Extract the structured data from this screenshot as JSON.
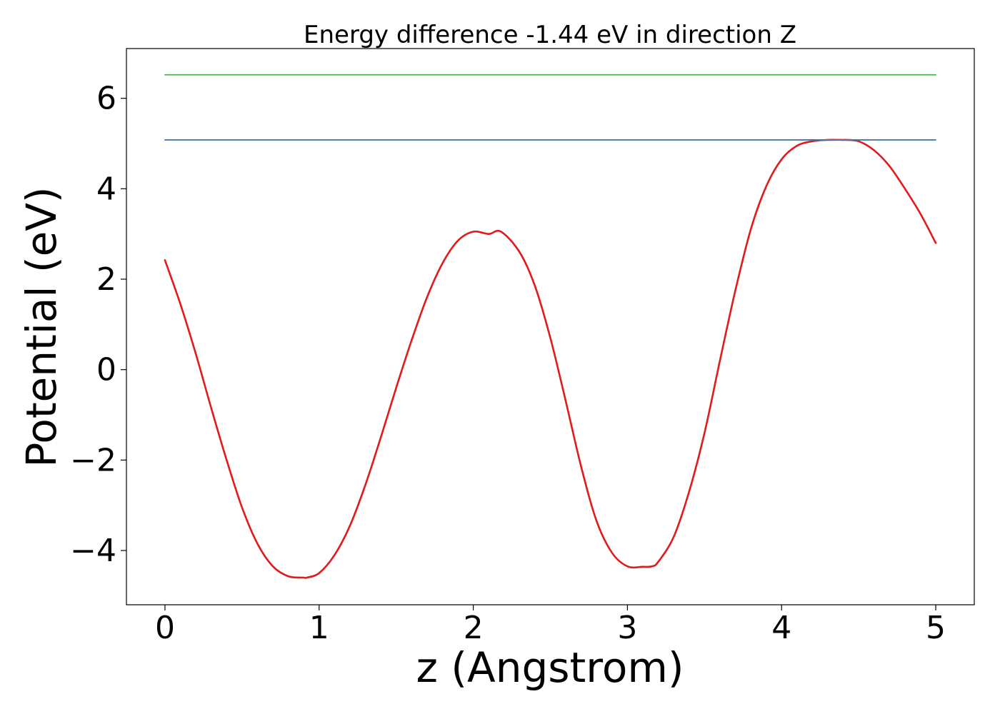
{
  "chart_data": {
    "type": "line",
    "title": "Energy difference -1.44 eV in direction Z",
    "xlabel": "z (Angstrom)",
    "ylabel": "Potential (eV)",
    "xlim": [
      -0.25,
      5.25
    ],
    "ylim": [
      -5.2,
      7.1
    ],
    "xticks": [
      0,
      1,
      2,
      3,
      4,
      5
    ],
    "xtick_labels": [
      "0",
      "1",
      "2",
      "3",
      "4",
      "5"
    ],
    "yticks": [
      -4,
      -2,
      0,
      2,
      4,
      6
    ],
    "ytick_labels": [
      "−4",
      "−2",
      "0",
      "2",
      "4",
      "6"
    ],
    "grid": false,
    "series": [
      {
        "color": "#e31a1c",
        "style": "curve",
        "x": [
          0,
          0.1,
          0.2,
          0.3,
          0.4,
          0.5,
          0.6,
          0.7,
          0.8,
          0.9,
          0.92,
          1.0,
          1.1,
          1.2,
          1.3,
          1.4,
          1.5,
          1.6,
          1.7,
          1.8,
          1.9,
          2.0,
          2.1,
          2.18,
          2.3,
          2.4,
          2.5,
          2.6,
          2.7,
          2.8,
          2.9,
          3.0,
          3.1,
          3.16,
          3.2,
          3.3,
          3.4,
          3.5,
          3.6,
          3.7,
          3.8,
          3.9,
          4.0,
          4.1,
          4.2,
          4.3,
          4.4,
          4.42,
          4.5,
          4.6,
          4.7,
          4.8,
          4.9,
          5.0
        ],
        "y": [
          2.42,
          1.45,
          0.35,
          -0.85,
          -2.0,
          -3.05,
          -3.85,
          -4.35,
          -4.57,
          -4.6,
          -4.6,
          -4.5,
          -4.1,
          -3.45,
          -2.55,
          -1.5,
          -0.4,
          0.65,
          1.6,
          2.35,
          2.85,
          3.05,
          3.0,
          3.05,
          2.6,
          1.85,
          0.7,
          -0.7,
          -2.15,
          -3.35,
          -4.05,
          -4.35,
          -4.36,
          -4.35,
          -4.25,
          -3.7,
          -2.7,
          -1.4,
          0.2,
          1.75,
          3.1,
          4.05,
          4.65,
          4.95,
          5.05,
          5.08,
          5.08,
          5.08,
          5.05,
          4.85,
          4.5,
          4.0,
          3.45,
          2.8
        ]
      },
      {
        "color": "#4477aa",
        "style": "line",
        "x": [
          0,
          5
        ],
        "y": [
          5.08,
          5.08
        ]
      },
      {
        "color": "#4daf4a",
        "style": "line",
        "x": [
          0,
          5
        ],
        "y": [
          6.52,
          6.52
        ]
      }
    ]
  }
}
